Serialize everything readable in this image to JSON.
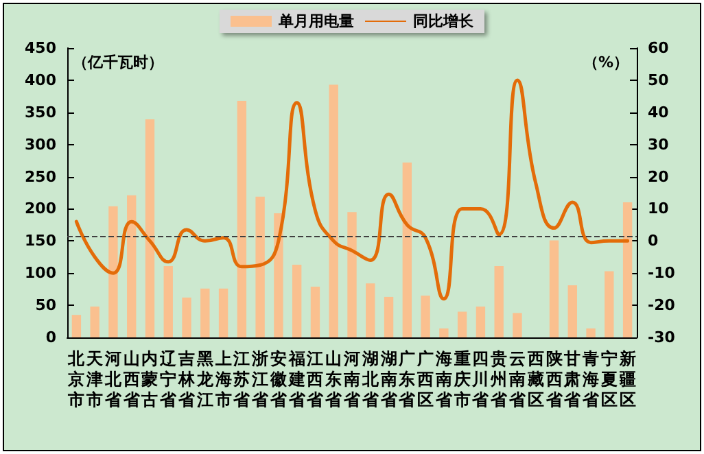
{
  "chart_data": {
    "type": "bar",
    "ylabel": "（亿千瓦时）",
    "y2label": "（%）",
    "categories": [
      "北京市",
      "天津市",
      "河北省",
      "山西省",
      "内蒙古",
      "辽宁省",
      "吉林省",
      "黑龙江",
      "上海市",
      "江苏省",
      "浙江省",
      "安徽省",
      "福建省",
      "江西省",
      "山东省",
      "河南省",
      "湖北省",
      "湖南省",
      "广东省",
      "广西区",
      "海南省",
      "重庆市",
      "四川省",
      "贵州省",
      "云南省",
      "西藏区",
      "陕西省",
      "甘肃省",
      "青海省",
      "宁夏区",
      "新疆区"
    ],
    "series": [
      {
        "name": "单月用电量",
        "color": "#fac08f",
        "values": [
          35,
          48,
          204,
          221,
          339,
          111,
          62,
          76,
          76,
          368,
          219,
          193,
          113,
          79,
          393,
          195,
          84,
          63,
          272,
          65,
          14,
          40,
          48,
          111,
          38,
          null,
          151,
          81,
          14,
          103,
          210
        ]
      },
      {
        "name": "同比增长",
        "type": "line",
        "axis": "y2",
        "color": "#e36c09",
        "values": [
          6,
          -5,
          -10,
          6,
          0,
          -6.5,
          3.5,
          0,
          1,
          -8,
          -7.5,
          0,
          43,
          9.5,
          0,
          -3,
          -6,
          14.5,
          5,
          1,
          -18,
          10,
          10,
          2,
          50,
          18,
          4,
          12,
          -0.5,
          0,
          0
        ]
      }
    ],
    "ylim": [
      0,
      450
    ],
    "yticks": [
      0,
      50,
      100,
      150,
      200,
      250,
      300,
      350,
      400,
      450
    ],
    "y2lim": [
      -30,
      60
    ],
    "y2ticks": [
      -30,
      -20,
      -10,
      0,
      10,
      20,
      30,
      40,
      50,
      60
    ],
    "ref_lines": [
      {
        "axis": "y2",
        "value": 1.5,
        "line_style": "dashed",
        "color": "#404040"
      }
    ],
    "grid": false,
    "legend": "top",
    "marker": "none",
    "line_style": "solid"
  }
}
